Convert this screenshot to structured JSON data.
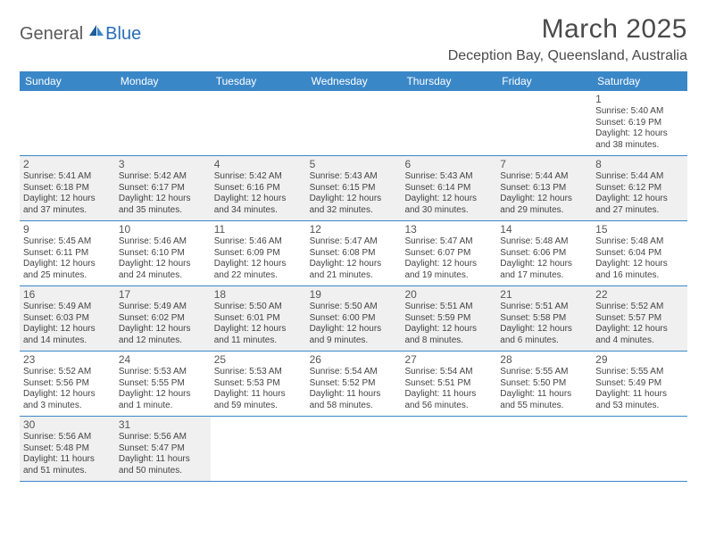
{
  "brand": {
    "part1": "General",
    "part2": "Blue"
  },
  "title": "March 2025",
  "location": "Deception Bay, Queensland, Australia",
  "colors": {
    "header_bg": "#3a87c8",
    "header_text": "#ffffff",
    "border": "#3a87c8",
    "shaded": "#f0f0f0",
    "text": "#444444"
  },
  "dayNames": [
    "Sunday",
    "Monday",
    "Tuesday",
    "Wednesday",
    "Thursday",
    "Friday",
    "Saturday"
  ],
  "weeks": [
    [
      {
        "empty": true
      },
      {
        "empty": true
      },
      {
        "empty": true
      },
      {
        "empty": true
      },
      {
        "empty": true
      },
      {
        "empty": true
      },
      {
        "n": "1",
        "sr": "Sunrise: 5:40 AM",
        "ss": "Sunset: 6:19 PM",
        "d1": "Daylight: 12 hours",
        "d2": "and 38 minutes."
      }
    ],
    [
      {
        "n": "2",
        "sr": "Sunrise: 5:41 AM",
        "ss": "Sunset: 6:18 PM",
        "d1": "Daylight: 12 hours",
        "d2": "and 37 minutes."
      },
      {
        "n": "3",
        "sr": "Sunrise: 5:42 AM",
        "ss": "Sunset: 6:17 PM",
        "d1": "Daylight: 12 hours",
        "d2": "and 35 minutes."
      },
      {
        "n": "4",
        "sr": "Sunrise: 5:42 AM",
        "ss": "Sunset: 6:16 PM",
        "d1": "Daylight: 12 hours",
        "d2": "and 34 minutes."
      },
      {
        "n": "5",
        "sr": "Sunrise: 5:43 AM",
        "ss": "Sunset: 6:15 PM",
        "d1": "Daylight: 12 hours",
        "d2": "and 32 minutes."
      },
      {
        "n": "6",
        "sr": "Sunrise: 5:43 AM",
        "ss": "Sunset: 6:14 PM",
        "d1": "Daylight: 12 hours",
        "d2": "and 30 minutes."
      },
      {
        "n": "7",
        "sr": "Sunrise: 5:44 AM",
        "ss": "Sunset: 6:13 PM",
        "d1": "Daylight: 12 hours",
        "d2": "and 29 minutes."
      },
      {
        "n": "8",
        "sr": "Sunrise: 5:44 AM",
        "ss": "Sunset: 6:12 PM",
        "d1": "Daylight: 12 hours",
        "d2": "and 27 minutes."
      }
    ],
    [
      {
        "n": "9",
        "sr": "Sunrise: 5:45 AM",
        "ss": "Sunset: 6:11 PM",
        "d1": "Daylight: 12 hours",
        "d2": "and 25 minutes."
      },
      {
        "n": "10",
        "sr": "Sunrise: 5:46 AM",
        "ss": "Sunset: 6:10 PM",
        "d1": "Daylight: 12 hours",
        "d2": "and 24 minutes."
      },
      {
        "n": "11",
        "sr": "Sunrise: 5:46 AM",
        "ss": "Sunset: 6:09 PM",
        "d1": "Daylight: 12 hours",
        "d2": "and 22 minutes."
      },
      {
        "n": "12",
        "sr": "Sunrise: 5:47 AM",
        "ss": "Sunset: 6:08 PM",
        "d1": "Daylight: 12 hours",
        "d2": "and 21 minutes."
      },
      {
        "n": "13",
        "sr": "Sunrise: 5:47 AM",
        "ss": "Sunset: 6:07 PM",
        "d1": "Daylight: 12 hours",
        "d2": "and 19 minutes."
      },
      {
        "n": "14",
        "sr": "Sunrise: 5:48 AM",
        "ss": "Sunset: 6:06 PM",
        "d1": "Daylight: 12 hours",
        "d2": "and 17 minutes."
      },
      {
        "n": "15",
        "sr": "Sunrise: 5:48 AM",
        "ss": "Sunset: 6:04 PM",
        "d1": "Daylight: 12 hours",
        "d2": "and 16 minutes."
      }
    ],
    [
      {
        "n": "16",
        "sr": "Sunrise: 5:49 AM",
        "ss": "Sunset: 6:03 PM",
        "d1": "Daylight: 12 hours",
        "d2": "and 14 minutes."
      },
      {
        "n": "17",
        "sr": "Sunrise: 5:49 AM",
        "ss": "Sunset: 6:02 PM",
        "d1": "Daylight: 12 hours",
        "d2": "and 12 minutes."
      },
      {
        "n": "18",
        "sr": "Sunrise: 5:50 AM",
        "ss": "Sunset: 6:01 PM",
        "d1": "Daylight: 12 hours",
        "d2": "and 11 minutes."
      },
      {
        "n": "19",
        "sr": "Sunrise: 5:50 AM",
        "ss": "Sunset: 6:00 PM",
        "d1": "Daylight: 12 hours",
        "d2": "and 9 minutes."
      },
      {
        "n": "20",
        "sr": "Sunrise: 5:51 AM",
        "ss": "Sunset: 5:59 PM",
        "d1": "Daylight: 12 hours",
        "d2": "and 8 minutes."
      },
      {
        "n": "21",
        "sr": "Sunrise: 5:51 AM",
        "ss": "Sunset: 5:58 PM",
        "d1": "Daylight: 12 hours",
        "d2": "and 6 minutes."
      },
      {
        "n": "22",
        "sr": "Sunrise: 5:52 AM",
        "ss": "Sunset: 5:57 PM",
        "d1": "Daylight: 12 hours",
        "d2": "and 4 minutes."
      }
    ],
    [
      {
        "n": "23",
        "sr": "Sunrise: 5:52 AM",
        "ss": "Sunset: 5:56 PM",
        "d1": "Daylight: 12 hours",
        "d2": "and 3 minutes."
      },
      {
        "n": "24",
        "sr": "Sunrise: 5:53 AM",
        "ss": "Sunset: 5:55 PM",
        "d1": "Daylight: 12 hours",
        "d2": "and 1 minute."
      },
      {
        "n": "25",
        "sr": "Sunrise: 5:53 AM",
        "ss": "Sunset: 5:53 PM",
        "d1": "Daylight: 11 hours",
        "d2": "and 59 minutes."
      },
      {
        "n": "26",
        "sr": "Sunrise: 5:54 AM",
        "ss": "Sunset: 5:52 PM",
        "d1": "Daylight: 11 hours",
        "d2": "and 58 minutes."
      },
      {
        "n": "27",
        "sr": "Sunrise: 5:54 AM",
        "ss": "Sunset: 5:51 PM",
        "d1": "Daylight: 11 hours",
        "d2": "and 56 minutes."
      },
      {
        "n": "28",
        "sr": "Sunrise: 5:55 AM",
        "ss": "Sunset: 5:50 PM",
        "d1": "Daylight: 11 hours",
        "d2": "and 55 minutes."
      },
      {
        "n": "29",
        "sr": "Sunrise: 5:55 AM",
        "ss": "Sunset: 5:49 PM",
        "d1": "Daylight: 11 hours",
        "d2": "and 53 minutes."
      }
    ],
    [
      {
        "n": "30",
        "sr": "Sunrise: 5:56 AM",
        "ss": "Sunset: 5:48 PM",
        "d1": "Daylight: 11 hours",
        "d2": "and 51 minutes."
      },
      {
        "n": "31",
        "sr": "Sunrise: 5:56 AM",
        "ss": "Sunset: 5:47 PM",
        "d1": "Daylight: 11 hours",
        "d2": "and 50 minutes."
      },
      {
        "empty": true
      },
      {
        "empty": true
      },
      {
        "empty": true
      },
      {
        "empty": true
      },
      {
        "empty": true
      }
    ]
  ]
}
